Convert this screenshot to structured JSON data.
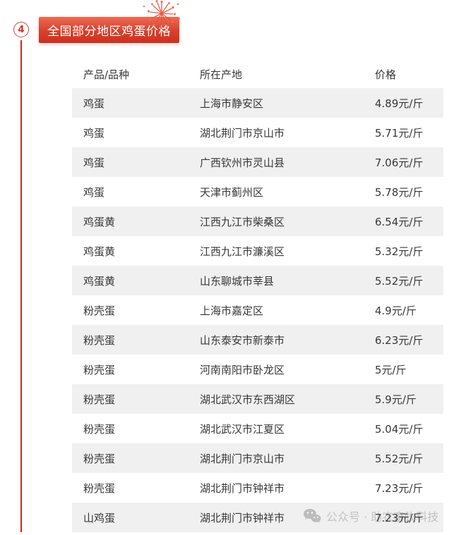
{
  "section": {
    "number": "4",
    "title": "全国部分地区鸡蛋价格"
  },
  "colors": {
    "accent_red": "#ce2f1f",
    "line_red": "#cb2a18",
    "stripe_gray": "#f0f0f0",
    "text_dark": "#383838",
    "watermark_gray": "#c3c3c3"
  },
  "table": {
    "headers": [
      "产品/品种",
      "所在产地",
      "价格"
    ],
    "rows": [
      {
        "product": "鸡蛋",
        "origin": "上海市静安区",
        "price": "4.89元/斤"
      },
      {
        "product": "鸡蛋",
        "origin": "湖北荆门市京山市",
        "price": "5.71元/斤"
      },
      {
        "product": "鸡蛋",
        "origin": "广西钦州市灵山县",
        "price": "7.06元/斤"
      },
      {
        "product": "鸡蛋",
        "origin": "天津市蓟州区",
        "price": "5.78元/斤"
      },
      {
        "product": "鸡蛋黄",
        "origin": "江西九江市柴桑区",
        "price": "6.54元/斤"
      },
      {
        "product": "鸡蛋黄",
        "origin": "江西九江市濂溪区",
        "price": "5.32元/斤"
      },
      {
        "product": "鸡蛋黄",
        "origin": "山东聊城市莘县",
        "price": "5.52元/斤"
      },
      {
        "product": "粉壳蛋",
        "origin": "上海市嘉定区",
        "price": "4.9元/斤"
      },
      {
        "product": "粉壳蛋",
        "origin": "山东泰安市新泰市",
        "price": "6.23元/斤"
      },
      {
        "product": "粉壳蛋",
        "origin": "河南南阳市卧龙区",
        "price": "5元/斤"
      },
      {
        "product": "粉壳蛋",
        "origin": "湖北武汉市东西湖区",
        "price": "5.9元/斤"
      },
      {
        "product": "粉壳蛋",
        "origin": "湖北武汉市江夏区",
        "price": "5.04元/斤"
      },
      {
        "product": "粉壳蛋",
        "origin": "湖北荆门市京山市",
        "price": "5.52元/斤"
      },
      {
        "product": "粉壳蛋",
        "origin": "湖北荆门市钟祥市",
        "price": "7.23元/斤"
      },
      {
        "product": "山鸡蛋",
        "origin": "湖北荆门市钟祥市",
        "price": "7.23元/斤"
      }
    ]
  },
  "watermark": {
    "icon": "wechat-icon",
    "text": "公众号 · 助农畜牧科技"
  }
}
